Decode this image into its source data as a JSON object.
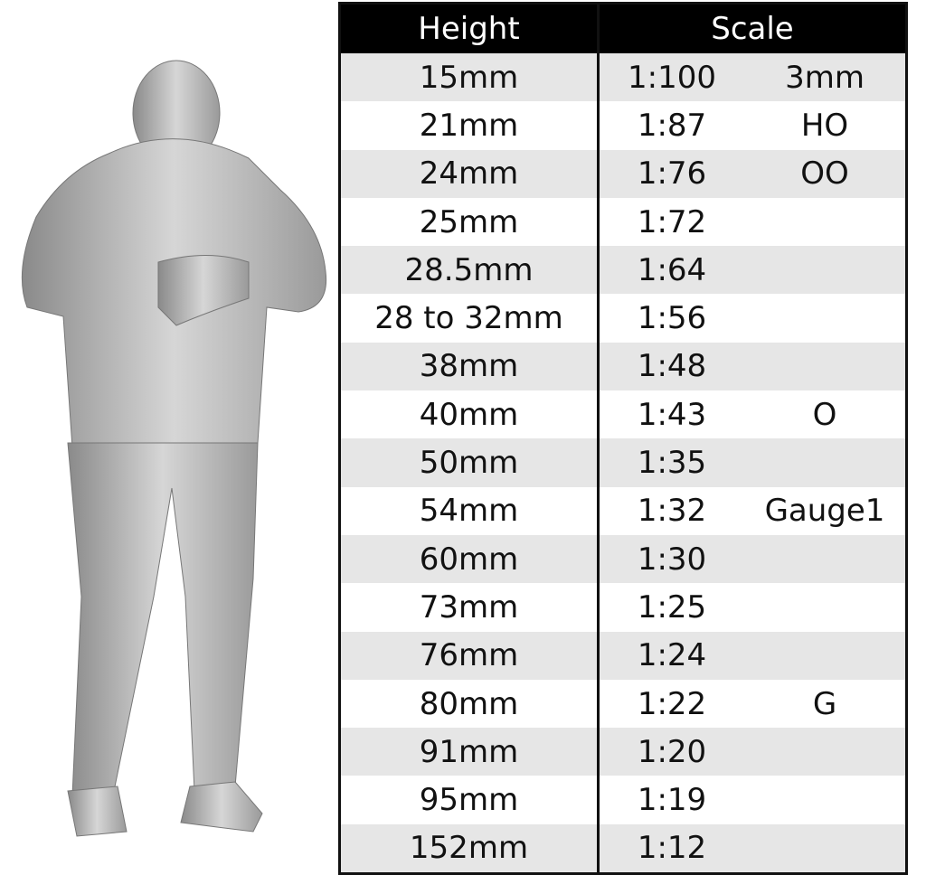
{
  "table": {
    "headers": [
      "Height",
      "Scale"
    ],
    "rows": [
      {
        "height": "15mm",
        "ratio": "1:100",
        "gauge": "3mm"
      },
      {
        "height": "21mm",
        "ratio": "1:87",
        "gauge": "HO"
      },
      {
        "height": "24mm",
        "ratio": "1:76",
        "gauge": "OO"
      },
      {
        "height": "25mm",
        "ratio": "1:72",
        "gauge": ""
      },
      {
        "height": "28.5mm",
        "ratio": "1:64",
        "gauge": ""
      },
      {
        "height": "28 to 32mm",
        "ratio": "1:56",
        "gauge": ""
      },
      {
        "height": "38mm",
        "ratio": "1:48",
        "gauge": ""
      },
      {
        "height": "40mm",
        "ratio": "1:43",
        "gauge": "O"
      },
      {
        "height": "50mm",
        "ratio": "1:35",
        "gauge": ""
      },
      {
        "height": "54mm",
        "ratio": "1:32",
        "gauge": "Gauge1"
      },
      {
        "height": "60mm",
        "ratio": "1:30",
        "gauge": ""
      },
      {
        "height": "73mm",
        "ratio": "1:25",
        "gauge": ""
      },
      {
        "height": "76mm",
        "ratio": "1:24",
        "gauge": ""
      },
      {
        "height": "80mm",
        "ratio": "1:22",
        "gauge": "G"
      },
      {
        "height": "91mm",
        "ratio": "1:20",
        "gauge": ""
      },
      {
        "height": "95mm",
        "ratio": "1:19",
        "gauge": ""
      },
      {
        "height": "152mm",
        "ratio": "1:12",
        "gauge": ""
      }
    ]
  },
  "colors": {
    "header_bg": "#000000",
    "stripe": "#e6e6e6",
    "figure": "#b8b8b8"
  }
}
